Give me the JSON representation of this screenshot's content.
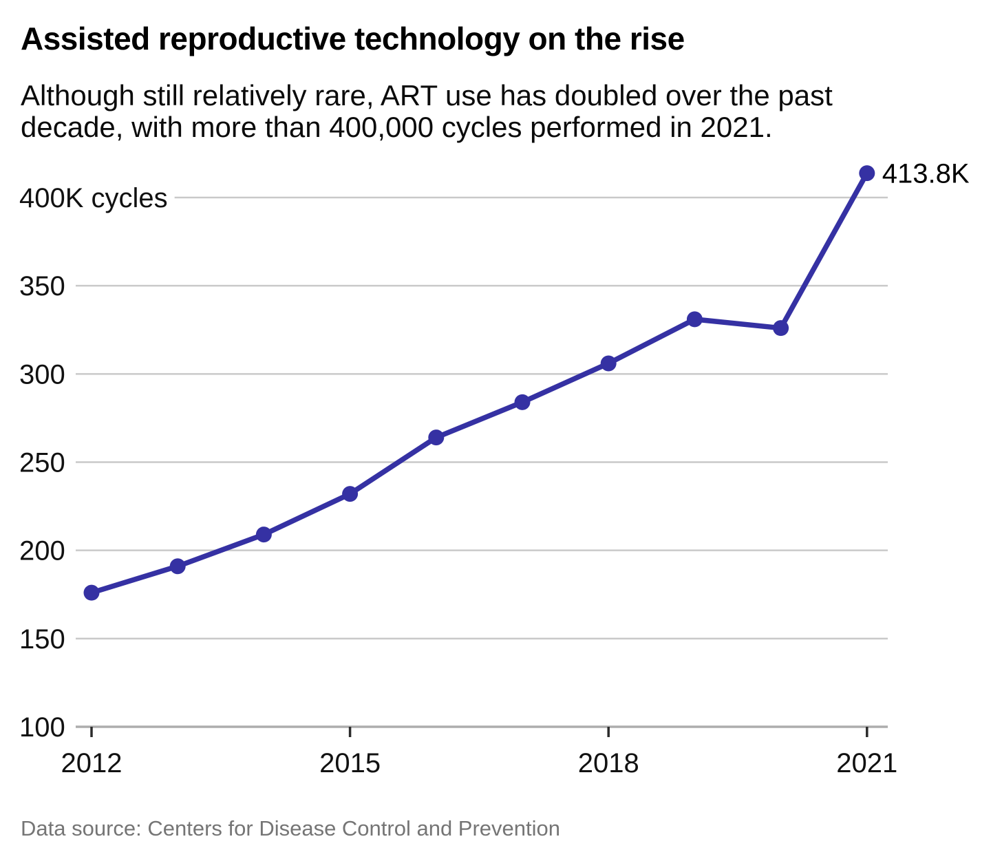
{
  "header": {
    "title": "Assisted reproductive technology on the rise",
    "subtitle": "Although still relatively rare, ART use has doubled over the past decade, with more than 400,000 cycles performed in 2021."
  },
  "footer": {
    "source": "Data source: Centers for Disease Control and Prevention"
  },
  "chart_data": {
    "type": "line",
    "title": "Assisted reproductive technology on the rise",
    "subtitle": "Although still relatively rare, ART use has doubled over the past decade, with more than 400,000 cycles performed in 2021.",
    "source": "Data source: Centers for Disease Control and Prevention",
    "x": [
      2012,
      2013,
      2014,
      2015,
      2016,
      2017,
      2018,
      2019,
      2020,
      2021
    ],
    "values": [
      176,
      191,
      209,
      232,
      264,
      284,
      306,
      331,
      326,
      413.8
    ],
    "units": "K cycles",
    "y_ticks": [
      100,
      150,
      200,
      250,
      300,
      350,
      400
    ],
    "y_tick_labels": [
      "100",
      "150",
      "200",
      "250",
      "300",
      "350",
      "400K cycles"
    ],
    "x_ticks": [
      2012,
      2015,
      2018,
      2021
    ],
    "x_tick_labels": [
      "2012",
      "2015",
      "2018",
      "2021"
    ],
    "ylim": [
      100,
      418
    ],
    "xlim": [
      2012,
      2021
    ],
    "grid": "horizontal",
    "legend": "none",
    "last_point_label": "413.8K",
    "colors": {
      "line": "#3531a3",
      "point": "#3531a3",
      "grid": "#c9c9c9",
      "axis_line": "#adadad",
      "tick": "#2b2b2b",
      "label": "#111111",
      "value_label": "#000000"
    }
  }
}
